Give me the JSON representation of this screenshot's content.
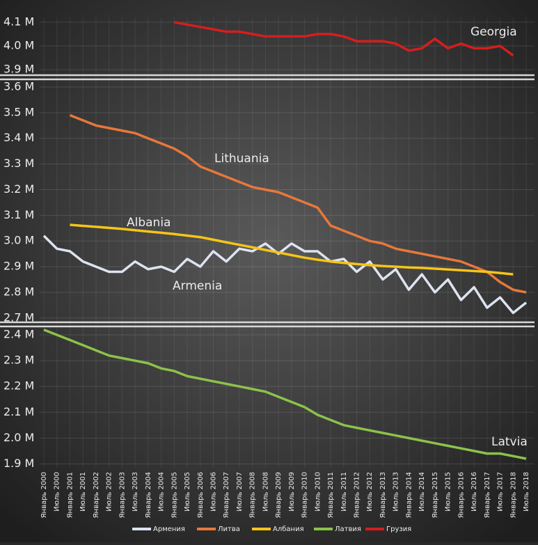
{
  "chart_data": {
    "type": "line",
    "categories": [
      "Январь 2000",
      "Июль 2000",
      "Январь 2001",
      "Июль 2001",
      "Январь 2002",
      "Июль 2002",
      "Январь 2003",
      "Июль 2003",
      "Январь 2004",
      "Июль 2004",
      "Январь 2005",
      "Июль 2005",
      "Январь 2006",
      "Июль 2006",
      "Январь 2007",
      "Июль 2007",
      "Январь 2008",
      "Июль 2008",
      "Январь 2009",
      "Июль 2009",
      "Январь 2010",
      "Июль 2010",
      "Январь 2011",
      "Июль 2011",
      "Январь 2012",
      "Июль 2012",
      "Январь 2013",
      "Июль 2013",
      "Январь 2014",
      "Июль 2014",
      "Январь 2015",
      "Июль 2015",
      "Январь 2016",
      "Июль 2016",
      "Январь 2017",
      "Июль 2017",
      "Январь 2018",
      "Июль 2018"
    ],
    "grid": true,
    "panels": [
      {
        "ylim": [
          3.88,
          4.12
        ],
        "yticks": [
          {
            "value": 4.1,
            "label": "4.1 M"
          },
          {
            "value": 4.0,
            "label": "4.0 M"
          },
          {
            "value": 3.9,
            "label": "3.9 M"
          }
        ]
      },
      {
        "ylim": [
          2.686,
          3.627
        ],
        "yticks": [
          {
            "value": 3.6,
            "label": "3.6 M"
          },
          {
            "value": 3.5,
            "label": "3.5 M"
          },
          {
            "value": 3.4,
            "label": "3.4 M"
          },
          {
            "value": 3.3,
            "label": "3.3 M"
          },
          {
            "value": 3.2,
            "label": "3.2 M"
          },
          {
            "value": 3.1,
            "label": "3.1 M"
          },
          {
            "value": 3.0,
            "label": "3.0 M"
          },
          {
            "value": 2.9,
            "label": "2.9 M"
          },
          {
            "value": 2.8,
            "label": "2.8 M"
          },
          {
            "value": 2.7,
            "label": "2.7 M"
          }
        ]
      },
      {
        "ylim": [
          1.885,
          2.43
        ],
        "yticks": [
          {
            "value": 2.4,
            "label": "2.4 M"
          },
          {
            "value": 2.3,
            "label": "2.3 M"
          },
          {
            "value": 2.2,
            "label": "2.2 M"
          },
          {
            "value": 2.1,
            "label": "2.1 M"
          },
          {
            "value": 2.0,
            "label": "2.0 M"
          },
          {
            "value": 1.9,
            "label": "1.9 M"
          }
        ]
      }
    ],
    "series": [
      {
        "name": "Армения",
        "color": "#dde4f0",
        "panel": 1,
        "values": [
          3.02,
          2.97,
          2.96,
          2.92,
          2.9,
          2.88,
          2.88,
          2.92,
          2.89,
          2.9,
          2.88,
          2.93,
          2.9,
          2.96,
          2.92,
          2.97,
          2.96,
          2.99,
          2.95,
          2.99,
          2.96,
          2.96,
          2.92,
          2.93,
          2.88,
          2.92,
          2.85,
          2.89,
          2.81,
          2.87,
          2.8,
          2.85,
          2.77,
          2.82,
          2.74,
          2.78,
          2.72,
          2.76
        ]
      },
      {
        "name": "Литва",
        "color": "#e8783a",
        "panel": 1,
        "values": [
          null,
          null,
          3.49,
          3.47,
          3.45,
          3.44,
          3.43,
          3.42,
          3.4,
          3.38,
          3.36,
          3.33,
          3.29,
          3.27,
          3.25,
          3.23,
          3.21,
          3.2,
          3.19,
          3.17,
          3.15,
          3.13,
          3.06,
          3.04,
          3.02,
          3.0,
          2.99,
          2.97,
          2.96,
          2.95,
          2.94,
          2.93,
          2.92,
          2.9,
          2.88,
          2.84,
          2.81,
          2.8
        ]
      },
      {
        "name": "Албания",
        "color": "#f5c518",
        "panel": 1,
        "values": [
          null,
          null,
          3.063,
          3.059,
          3.055,
          3.051,
          3.047,
          3.042,
          3.037,
          3.032,
          3.027,
          3.021,
          3.015,
          3.005,
          2.995,
          2.985,
          2.975,
          2.965,
          2.955,
          2.945,
          2.935,
          2.927,
          2.92,
          2.915,
          2.91,
          2.906,
          2.902,
          2.9,
          2.897,
          2.895,
          2.892,
          2.889,
          2.886,
          2.883,
          2.88,
          2.875,
          2.87,
          null
        ]
      },
      {
        "name": "Латвия",
        "color": "#8bc34a",
        "panel": 2,
        "values": [
          2.42,
          2.4,
          2.38,
          2.36,
          2.34,
          2.32,
          2.31,
          2.3,
          2.29,
          2.27,
          2.26,
          2.24,
          2.23,
          2.22,
          2.21,
          2.2,
          2.19,
          2.18,
          2.16,
          2.14,
          2.12,
          2.09,
          2.07,
          2.05,
          2.04,
          2.03,
          2.02,
          2.01,
          2.0,
          1.99,
          1.98,
          1.97,
          1.96,
          1.95,
          1.94,
          1.94,
          1.93,
          1.92
        ]
      },
      {
        "name": "Грузия",
        "color": "#d41e1e",
        "panel": 0,
        "values": [
          null,
          null,
          null,
          null,
          null,
          null,
          null,
          null,
          null,
          null,
          4.1,
          4.09,
          4.08,
          4.07,
          4.06,
          4.06,
          4.05,
          4.04,
          4.04,
          4.04,
          4.04,
          4.05,
          4.05,
          4.04,
          4.02,
          4.02,
          4.02,
          4.01,
          3.98,
          3.99,
          4.03,
          3.99,
          4.01,
          3.99,
          3.99,
          4.0,
          3.96,
          null
        ]
      }
    ],
    "annotations": [
      "Georgia",
      "Lithuania",
      "Albania",
      "Armenia",
      "Latvia"
    ]
  }
}
